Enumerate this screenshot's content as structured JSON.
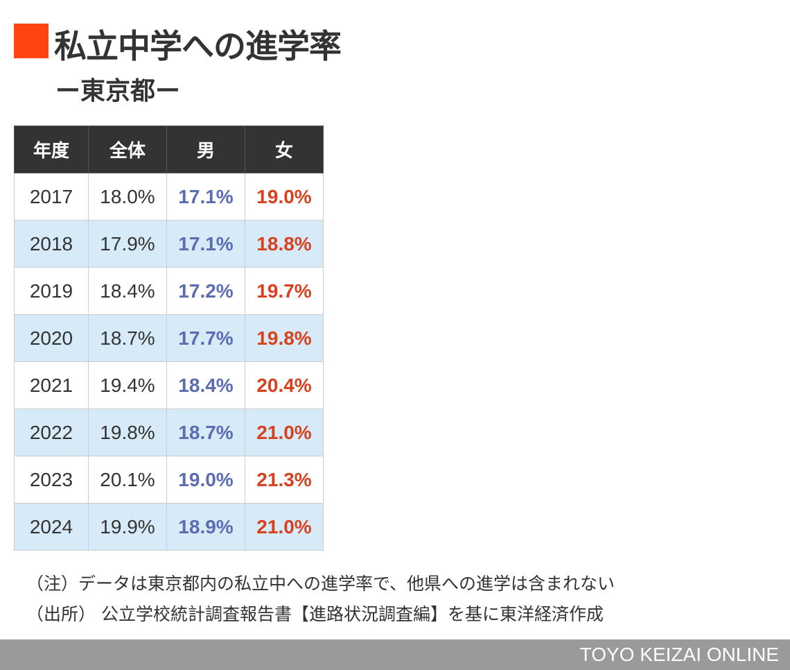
{
  "colors": {
    "accent": "#ff4412",
    "male": "#5b6db0",
    "female": "#d9401e",
    "header_bg": "#333333",
    "stripe": "#d6ebf7"
  },
  "chart_data": {
    "type": "table",
    "title": "私立中学への進学率",
    "subtitle": "ー東京都ー",
    "columns": [
      "年度",
      "全体",
      "男",
      "女"
    ],
    "rows": [
      [
        "2017",
        "18.0%",
        "17.1%",
        "19.0%"
      ],
      [
        "2018",
        "17.9%",
        "17.1%",
        "18.8%"
      ],
      [
        "2019",
        "18.4%",
        "17.2%",
        "19.7%"
      ],
      [
        "2020",
        "18.7%",
        "17.7%",
        "19.8%"
      ],
      [
        "2021",
        "19.4%",
        "18.4%",
        "20.4%"
      ],
      [
        "2022",
        "19.8%",
        "18.7%",
        "21.0%"
      ],
      [
        "2023",
        "20.1%",
        "19.0%",
        "21.3%"
      ],
      [
        "2024",
        "19.9%",
        "18.9%",
        "21.0%"
      ]
    ],
    "notes": [
      "（注）データは東京都内の私立中への進学率で、他県への進学は含まれない",
      "（出所） 公立学校統計調査報告書【進路状況調査編】を基に東洋経済作成"
    ]
  },
  "footer": "TOYO KEIZAI ONLINE"
}
